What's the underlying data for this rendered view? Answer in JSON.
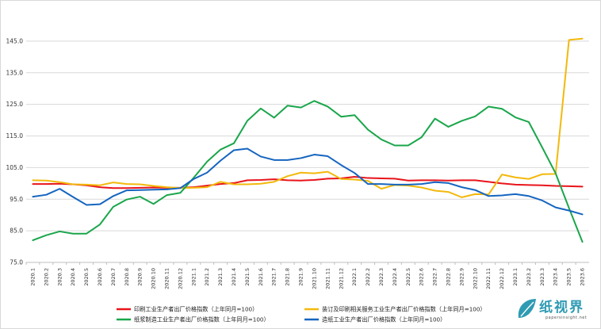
{
  "chart_data": {
    "type": "line",
    "title": "",
    "xlabel": "",
    "ylabel": "",
    "ylim": [
      75,
      150
    ],
    "yticks": [
      "75.0",
      "85.0",
      "95.0",
      "105.0",
      "115.0",
      "125.0",
      "135.0",
      "145.0"
    ],
    "grid": true,
    "legend_position": "bottom",
    "categories": [
      "2020.1",
      "2020.2",
      "2020.3",
      "2020.4",
      "2020.5",
      "2020.6",
      "2020.7",
      "2020.8",
      "2020.9",
      "2020.10",
      "2020.11",
      "2020.12",
      "2021.1",
      "2021.2",
      "2021.3",
      "2021.4",
      "2021.5",
      "2021.6",
      "2021.7",
      "2021.8",
      "2021.9",
      "2021.10",
      "2021.11",
      "2021.12",
      "2022.1",
      "2022.2",
      "2022.3",
      "2022.4",
      "2022.5",
      "2022.6",
      "2022.7",
      "2022.8",
      "2022.9",
      "2022.10",
      "2022.11",
      "2022.12",
      "2023.1",
      "2023.2",
      "2023.3",
      "2023.4",
      "2023.5",
      "2023.6"
    ],
    "series": [
      {
        "name": "印刷工业生产者出厂价格指数（上年同月=100）",
        "color": "#e8141b",
        "values": [
          99.8,
          99.8,
          99.9,
          99.7,
          99.4,
          98.8,
          98.5,
          98.5,
          98.6,
          98.7,
          98.6,
          98.6,
          98.8,
          99.3,
          99.8,
          100.1,
          101.0,
          101.1,
          101.3,
          101.0,
          100.9,
          101.1,
          101.5,
          101.6,
          102.1,
          101.7,
          101.6,
          101.5,
          100.9,
          101.0,
          101.0,
          100.9,
          101.0,
          101.0,
          100.5,
          100.0,
          99.6,
          99.5,
          99.4,
          99.2,
          99.1,
          99.0
        ]
      },
      {
        "name": "装订及印刷相关服务工业生产者出厂价格指数（上年同月=100）",
        "color": "#f2b90c",
        "values": [
          101.0,
          100.9,
          100.4,
          99.7,
          99.6,
          99.4,
          100.3,
          99.8,
          99.7,
          99.2,
          98.8,
          98.5,
          98.6,
          98.8,
          100.5,
          99.7,
          99.7,
          99.9,
          100.5,
          102.3,
          103.4,
          103.2,
          103.7,
          101.4,
          101.2,
          100.8,
          98.3,
          99.5,
          99.3,
          98.7,
          97.7,
          97.3,
          95.6,
          96.6,
          96.5,
          102.8,
          101.9,
          101.4,
          102.9,
          103.0,
          145.4,
          145.8
        ]
      },
      {
        "name": "纸浆制造工业生产者出厂价格指数（上年同月=100）",
        "color": "#1aa64b",
        "values": [
          82.0,
          83.6,
          84.8,
          84.1,
          84.1,
          87.0,
          92.6,
          94.9,
          95.8,
          93.5,
          96.3,
          97.0,
          101.8,
          106.9,
          110.7,
          112.7,
          119.8,
          123.7,
          120.8,
          124.6,
          124.0,
          126.1,
          124.3,
          121.1,
          121.6,
          117.0,
          113.9,
          112.0,
          112.0,
          114.6,
          120.5,
          117.9,
          119.8,
          121.2,
          124.3,
          123.6,
          120.9,
          119.4,
          111.4,
          103.2,
          92.2,
          81.5
        ]
      },
      {
        "name": "造纸工业生产者出厂价格指数（上年同月=100）",
        "color": "#1565c0",
        "values": [
          95.8,
          96.4,
          98.3,
          95.7,
          93.2,
          93.4,
          96.0,
          97.8,
          97.9,
          98.0,
          98.1,
          98.5,
          101.4,
          103.4,
          107.2,
          110.5,
          111.0,
          108.5,
          107.4,
          107.4,
          108.0,
          109.1,
          108.6,
          105.8,
          103.3,
          99.8,
          99.8,
          99.6,
          99.6,
          99.8,
          100.4,
          100.1,
          98.8,
          97.9,
          96.0,
          96.2,
          96.6,
          96.0,
          94.6,
          92.4,
          91.4,
          90.2
        ]
      }
    ]
  },
  "watermark": {
    "main": "纸视界",
    "sub": "papersinsight.net"
  }
}
